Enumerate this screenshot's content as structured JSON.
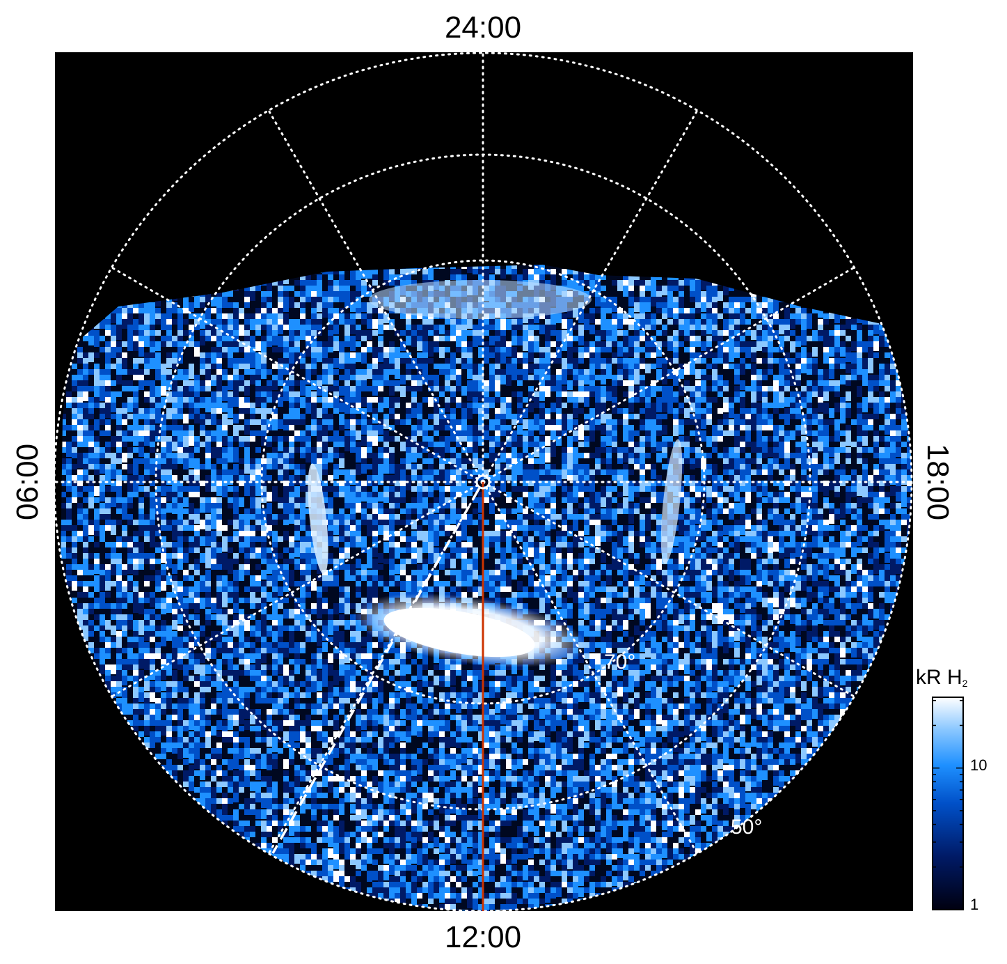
{
  "figure": {
    "local_time_labels": {
      "top": "24:00",
      "bottom": "12:00",
      "left": "06:00",
      "right": "18:00"
    },
    "latitude_labels": [
      "70°",
      "50°"
    ],
    "colorbar": {
      "title_main": "kR H",
      "title_sub": "2",
      "tick_labels": [
        "10",
        "1"
      ],
      "scale": "log",
      "colors": [
        "#000010",
        "#001a66",
        "#0050c8",
        "#1e90ff",
        "#8cc8ff",
        "#ffffff"
      ]
    },
    "colors": {
      "background": "#000000",
      "grid": "#ffffff",
      "meridian_line": "#cc3300",
      "dashed_line": "#ffffff"
    }
  }
}
